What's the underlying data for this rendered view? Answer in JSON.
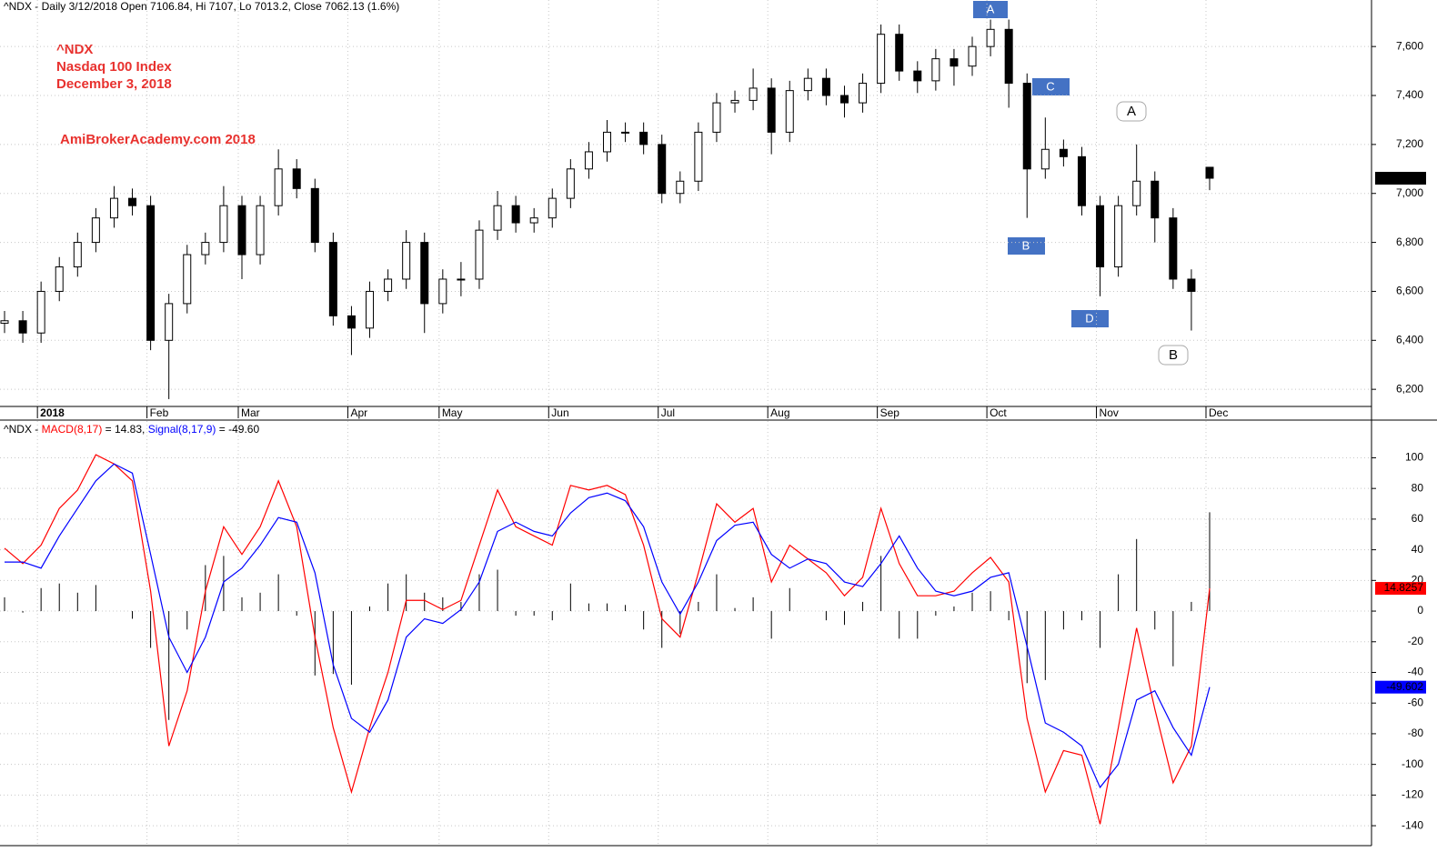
{
  "chart_data": [
    {
      "type": "candlestick",
      "title": "^NDX - Daily 3/12/2018 Open 7106.84, Hi 7107, Lo 7013.2, Close 7062.13 (1.6%)",
      "annotations": [
        "^NDX",
        "Nasdaq 100 Index",
        "December 3, 2018",
        "AmiBrokerAcademy.com  2018"
      ],
      "wave_labels": [
        "A",
        "C",
        "B",
        "D",
        "A",
        "B"
      ],
      "categories": [
        null,
        null,
        "2018",
        null,
        null,
        null,
        null,
        null,
        "Feb",
        null,
        null,
        null,
        null,
        "Mar",
        null,
        null,
        null,
        null,
        null,
        "Apr",
        null,
        null,
        null,
        null,
        "May",
        null,
        null,
        null,
        null,
        null,
        "Jun",
        null,
        null,
        null,
        null,
        null,
        "Jul",
        null,
        null,
        null,
        null,
        null,
        "Aug",
        null,
        null,
        null,
        null,
        null,
        "Sep",
        null,
        null,
        null,
        null,
        null,
        "Oct",
        null,
        null,
        null,
        null,
        null,
        "Nov",
        null,
        null,
        null,
        null,
        null,
        "Dec"
      ],
      "open": [
        6470,
        6480,
        6430,
        6600,
        6700,
        6800,
        6900,
        6980,
        6950,
        6400,
        6550,
        6750,
        6800,
        6950,
        6750,
        6950,
        7100,
        7020,
        6800,
        6500,
        6450,
        6600,
        6650,
        6800,
        6550,
        6650,
        6650,
        6850,
        6950,
        6880,
        6900,
        6980,
        7100,
        7170,
        7250,
        7250,
        7200,
        7000,
        7050,
        7250,
        7370,
        7380,
        7430,
        7250,
        7420,
        7470,
        7400,
        7370,
        7450,
        7650,
        7500,
        7460,
        7550,
        7520,
        7600,
        7670,
        7450,
        7100,
        7180,
        7150,
        6950,
        6700,
        6950,
        7050,
        6900,
        6650,
        7106.84
      ],
      "high": [
        6520,
        6520,
        6640,
        6740,
        6840,
        6940,
        7030,
        7020,
        6990,
        6590,
        6790,
        6840,
        7030,
        6990,
        6990,
        7180,
        7140,
        7060,
        6840,
        6540,
        6640,
        6690,
        6850,
        6840,
        6690,
        6720,
        6890,
        7010,
        6990,
        6940,
        7020,
        7140,
        7210,
        7300,
        7290,
        7290,
        7240,
        7090,
        7290,
        7410,
        7420,
        7510,
        7470,
        7460,
        7510,
        7510,
        7440,
        7490,
        7690,
        7690,
        7540,
        7590,
        7590,
        7640,
        7710,
        7710,
        7490,
        7310,
        7220,
        7190,
        6990,
        6990,
        7200,
        7090,
        6940,
        6690,
        7107
      ],
      "low": [
        6430,
        6390,
        6390,
        6560,
        6660,
        6760,
        6860,
        6910,
        6360,
        6160,
        6510,
        6710,
        6760,
        6650,
        6710,
        6910,
        6980,
        6760,
        6460,
        6340,
        6410,
        6560,
        6610,
        6430,
        6510,
        6580,
        6610,
        6810,
        6840,
        6840,
        6860,
        6940,
        7060,
        7130,
        7210,
        7160,
        6960,
        6960,
        7010,
        7210,
        7330,
        7340,
        7160,
        7210,
        7380,
        7360,
        7310,
        7330,
        7410,
        7460,
        7410,
        7420,
        7440,
        7480,
        7560,
        7350,
        6900,
        7060,
        7110,
        6910,
        6580,
        6660,
        6910,
        6800,
        6610,
        6440,
        7013.2
      ],
      "close": [
        6480,
        6430,
        6600,
        6700,
        6800,
        6900,
        6980,
        6950,
        6400,
        6550,
        6750,
        6800,
        6950,
        6750,
        6950,
        7100,
        7020,
        6800,
        6500,
        6450,
        6600,
        6650,
        6800,
        6550,
        6650,
        6650,
        6850,
        6950,
        6880,
        6900,
        6980,
        7100,
        7170,
        7250,
        7250,
        7200,
        7000,
        7050,
        7250,
        7370,
        7380,
        7430,
        7250,
        7420,
        7470,
        7400,
        7370,
        7450,
        7650,
        7500,
        7460,
        7550,
        7520,
        7600,
        7670,
        7450,
        7100,
        7180,
        7150,
        6950,
        6700,
        6950,
        7050,
        6900,
        6650,
        6600,
        7062.13
      ],
      "up_color": "#ffffff",
      "down_color": "#000000",
      "price_marker": "7,062.13",
      "ylim": [
        6130,
        7790
      ],
      "yticks": [
        {
          "value": 6200,
          "label": "6,200"
        },
        {
          "value": 6400,
          "label": "6,400"
        },
        {
          "value": 6600,
          "label": "6,600"
        },
        {
          "value": 6800,
          "label": "6,800"
        },
        {
          "value": 7000,
          "label": "7,000"
        },
        {
          "value": 7200,
          "label": "7,200"
        },
        {
          "value": 7400,
          "label": "7,400"
        },
        {
          "value": 7600,
          "label": "7,600"
        }
      ],
      "grid": true
    },
    {
      "type": "line",
      "title_prefix": "^NDX - ",
      "series": [
        {
          "name": "MACD(8,17)",
          "header_value": " = 14.83, ",
          "end_label": "14.8257",
          "color": "#ff0000",
          "values": [
            41,
            31,
            43,
            67,
            79,
            102,
            96,
            85,
            13,
            -88,
            -52,
            13,
            55,
            37,
            55,
            85,
            55,
            -17,
            -76,
            -118,
            -76,
            -40,
            7,
            7,
            1,
            7,
            43,
            79,
            55,
            49,
            43,
            82,
            79,
            82,
            76,
            43,
            -5,
            -17,
            25,
            70,
            58,
            67,
            19,
            43,
            34,
            25,
            10,
            22,
            67,
            31,
            10,
            10,
            13,
            25,
            35,
            19,
            -70,
            -118,
            -91,
            -94,
            -139,
            -76,
            -11,
            -64,
            -112,
            -88,
            14.8257
          ]
        },
        {
          "name": "Signal(8,17,9)",
          "header_value": " = -49.60",
          "end_label": "-49.602",
          "color": "#0000ff",
          "values": [
            32,
            32,
            28,
            49,
            67,
            85,
            96,
            90,
            37,
            -17,
            -40,
            -17,
            19,
            28,
            43,
            61,
            58,
            25,
            -35,
            -70,
            -79,
            -58,
            -17,
            -5,
            -8,
            1,
            19,
            52,
            58,
            52,
            49,
            64,
            74,
            77,
            72,
            55,
            19,
            -2,
            19,
            46,
            56,
            58,
            37,
            28,
            34,
            31,
            19,
            16,
            31,
            49,
            28,
            13,
            10,
            13,
            22,
            25,
            -23,
            -73,
            -79,
            -88,
            -115,
            -100,
            -58,
            -52,
            -76,
            -94,
            -49.602
          ]
        }
      ],
      "histogram": {
        "color": "#000000",
        "values": [
          9,
          -1,
          15,
          18,
          12,
          17,
          0,
          -5,
          -24,
          -71,
          -12,
          30,
          36,
          9,
          12,
          24,
          -3,
          -42,
          -41,
          -48,
          3,
          18,
          24,
          12,
          9,
          6,
          24,
          27,
          -3,
          -3,
          -6,
          18,
          5,
          5,
          4,
          -12,
          -24,
          -15,
          6,
          24,
          2,
          9,
          -18,
          15,
          0,
          -6,
          -9,
          6,
          36,
          -18,
          -18,
          -3,
          3,
          12,
          13,
          -6,
          -47,
          -45,
          -12,
          -6,
          -24,
          24,
          47,
          -12,
          -36,
          6,
          64.4277
        ]
      },
      "ylim": [
        -153,
        124
      ],
      "yticks": [
        100,
        80,
        60,
        40,
        20,
        0,
        -20,
        -40,
        -60,
        -80,
        -100,
        -120,
        -140
      ],
      "grid": true
    }
  ]
}
